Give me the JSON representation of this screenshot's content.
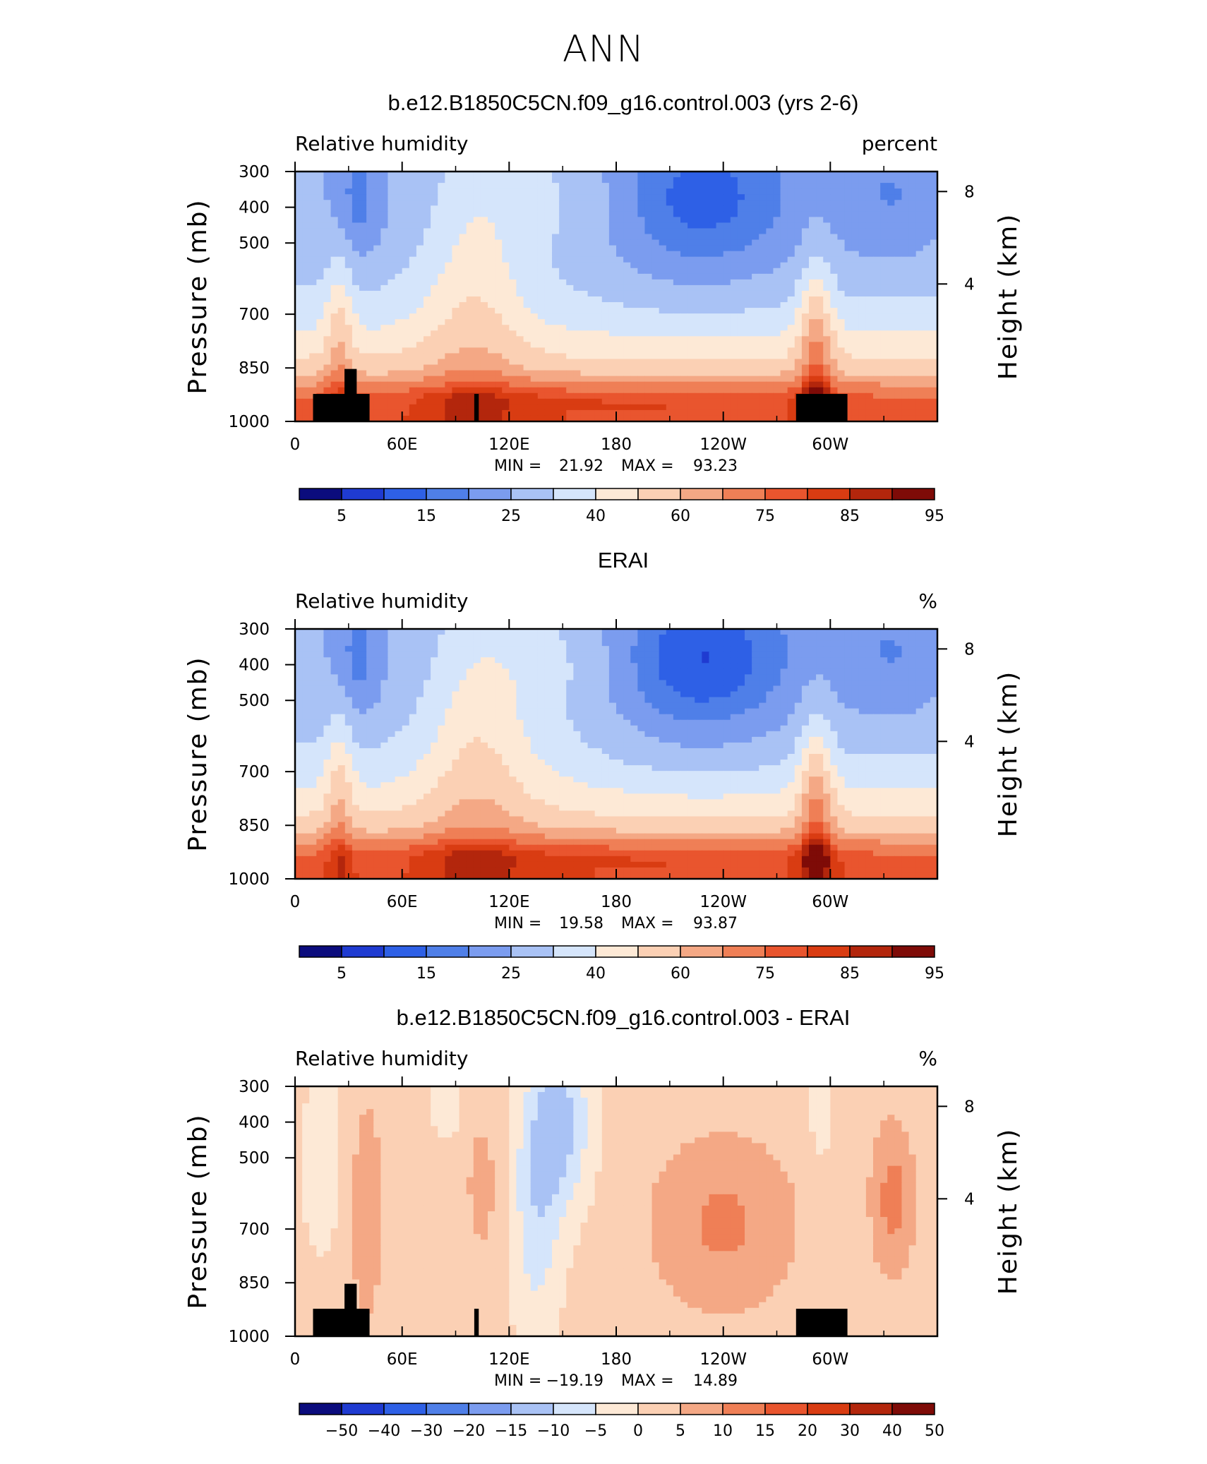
{
  "figure": {
    "title": "ANN"
  },
  "chart_data": [
    {
      "type": "heatmap",
      "title": "b.e12.B1850C5CN.f09_g16.control.003 (yrs 2-6)",
      "left_label": "Relative humidity",
      "right_label": "percent",
      "ylabel": "Pressure (mb)",
      "y2label": "Height (km)",
      "x_ticks": [
        "0",
        "60E",
        "120E",
        "180",
        "120W",
        "60W"
      ],
      "y_ticks": [
        "300",
        "400",
        "500",
        "700",
        "850",
        "1000"
      ],
      "y2_ticks": [
        "8",
        "4"
      ],
      "stats": {
        "min_label": "MIN =",
        "min": "21.92",
        "max_label": "MAX =",
        "max": "93.23"
      },
      "colorbar_labels": [
        "5",
        "15",
        "25",
        "40",
        "60",
        "75",
        "85",
        "95"
      ],
      "has_topography_mask": true
    },
    {
      "type": "heatmap",
      "title": "ERAI",
      "left_label": "Relative humidity",
      "right_label": "%",
      "ylabel": "Pressure (mb)",
      "y2label": "Height (km)",
      "x_ticks": [
        "0",
        "60E",
        "120E",
        "180",
        "120W",
        "60W"
      ],
      "y_ticks": [
        "300",
        "400",
        "500",
        "700",
        "850",
        "1000"
      ],
      "y2_ticks": [
        "8",
        "4"
      ],
      "stats": {
        "min_label": "MIN =",
        "min": "19.58",
        "max_label": "MAX =",
        "max": "93.87"
      },
      "colorbar_labels": [
        "5",
        "15",
        "25",
        "40",
        "60",
        "75",
        "85",
        "95"
      ],
      "has_topography_mask": false
    },
    {
      "type": "heatmap",
      "title": "b.e12.B1850C5CN.f09_g16.control.003 - ERAI",
      "left_label": "Relative humidity",
      "right_label": "%",
      "ylabel": "Pressure (mb)",
      "y2label": "Height (km)",
      "x_ticks": [
        "0",
        "60E",
        "120E",
        "180",
        "120W",
        "60W"
      ],
      "y_ticks": [
        "300",
        "400",
        "500",
        "700",
        "850",
        "1000"
      ],
      "y2_ticks": [
        "8",
        "4"
      ],
      "stats": {
        "min_label": "MIN =",
        "min": "−19.19",
        "max_label": "MAX =",
        "max": "14.89"
      },
      "colorbar_labels": [
        "−50",
        "−40",
        "−30",
        "−20",
        "−15",
        "−10",
        "−5",
        "0",
        "5",
        "10",
        "15",
        "20",
        "30",
        "40",
        "50"
      ],
      "has_topography_mask": true
    }
  ],
  "colormap": [
    "#0b0c7d",
    "#1f3bd1",
    "#2e60e6",
    "#4f7fe8",
    "#7b9cef",
    "#a9c2f5",
    "#d5e5fb",
    "#fde9d6",
    "#fbd0b4",
    "#f4a885",
    "#ef7f56",
    "#e9552e",
    "#d93c12",
    "#b3260c",
    "#7e0b07"
  ]
}
